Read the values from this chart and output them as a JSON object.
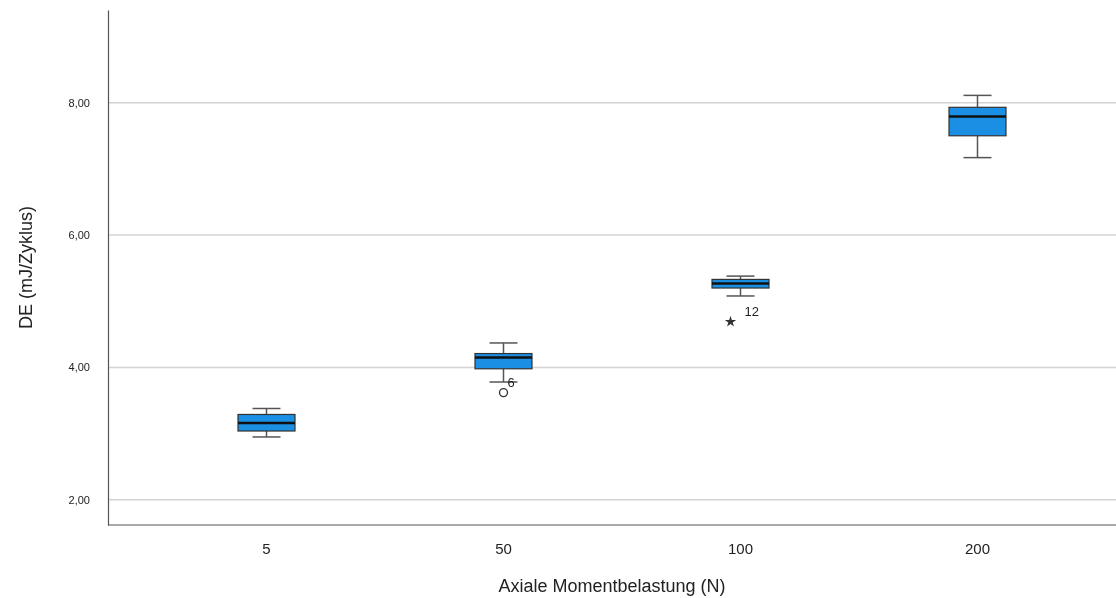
{
  "chart_data": {
    "type": "box",
    "xlabel": "Axiale Momentbelastung (N)",
    "ylabel": "DE (mJ/Zyklus)",
    "categories": [
      "5",
      "50",
      "100",
      "200"
    ],
    "ylim": [
      1.62,
      9.4
    ],
    "yticks": [
      {
        "value": 2,
        "label": "2,00"
      },
      {
        "value": 4,
        "label": "4,00"
      },
      {
        "value": 6,
        "label": "6,00"
      },
      {
        "value": 8,
        "label": "8,00"
      }
    ],
    "grid": "y",
    "series": [
      {
        "color": "#1a8fe3",
        "boxes": [
          {
            "low": 2.95,
            "q1": 3.04,
            "median": 3.16,
            "q3": 3.29,
            "high": 3.38
          },
          {
            "low": 3.78,
            "q1": 3.98,
            "median": 4.15,
            "q3": 4.21,
            "high": 4.37
          },
          {
            "low": 5.08,
            "q1": 5.2,
            "median": 5.27,
            "q3": 5.33,
            "high": 5.38
          },
          {
            "low": 7.17,
            "q1": 7.5,
            "median": 7.79,
            "q3": 7.93,
            "high": 8.11
          }
        ]
      },
      {
        "type": "scatter",
        "x": [
          "50"
        ],
        "values": [
          3.62
        ],
        "marker": "circle",
        "color": "#333333"
      },
      {
        "type": "scatter",
        "x": [
          "100"
        ],
        "values": [
          4.69
        ],
        "marker": "star",
        "color": "#333333"
      }
    ],
    "annotations": [
      {
        "text": "6",
        "x": "50",
        "y": 3.62
      },
      {
        "text": "12",
        "x": "100",
        "y": 4.69
      }
    ]
  }
}
